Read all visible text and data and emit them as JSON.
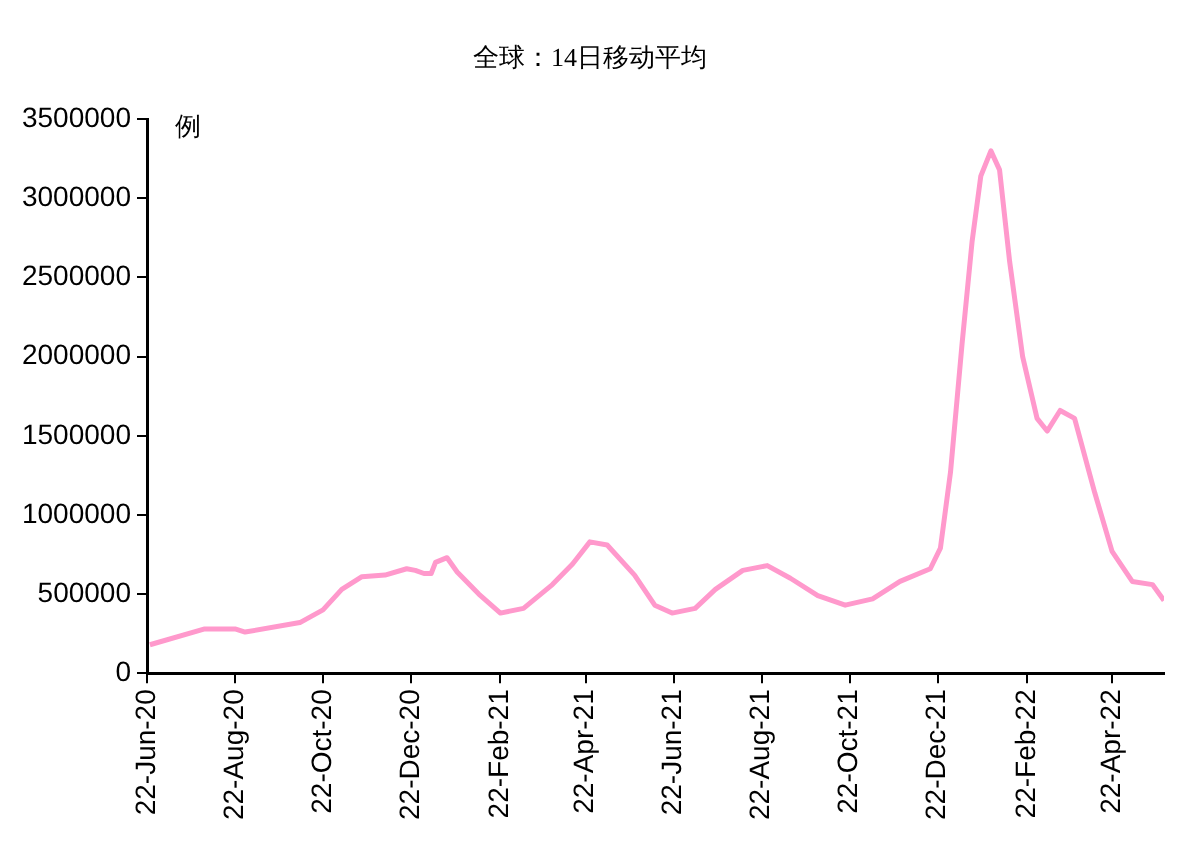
{
  "chart_data": {
    "type": "line",
    "title": "全球：14日移动平均",
    "ylabel": "例",
    "x": [
      "2020-06-24",
      "2020-08-01",
      "2020-08-22",
      "2020-08-29",
      "2020-10-06",
      "2020-10-22",
      "2020-11-04",
      "2020-11-18",
      "2020-12-04",
      "2020-12-19",
      "2020-12-25",
      "2020-12-31",
      "2021-01-05",
      "2021-01-08",
      "2021-01-16",
      "2021-01-23",
      "2021-02-07",
      "2021-02-22",
      "2021-03-10",
      "2021-03-30",
      "2021-04-13",
      "2021-04-25",
      "2021-05-07",
      "2021-05-26",
      "2021-06-09",
      "2021-06-21",
      "2021-07-07",
      "2021-07-21",
      "2021-08-09",
      "2021-08-26",
      "2021-09-11",
      "2021-09-30",
      "2021-10-19",
      "2021-11-07",
      "2021-11-26",
      "2021-12-17",
      "2021-12-24",
      "2021-12-31",
      "2022-01-08",
      "2022-01-15",
      "2022-01-21",
      "2022-01-28",
      "2022-02-03",
      "2022-02-10",
      "2022-02-19",
      "2022-03-01",
      "2022-03-08",
      "2022-03-17",
      "2022-03-27",
      "2022-04-10",
      "2022-04-22",
      "2022-05-06",
      "2022-05-20",
      "2022-05-28"
    ],
    "series": [
      {
        "color": "#ff99cc",
        "values": [
          180000,
          280000,
          280000,
          260000,
          320000,
          400000,
          530000,
          610000,
          620000,
          660000,
          650000,
          630000,
          630000,
          700000,
          730000,
          640000,
          500000,
          380000,
          410000,
          560000,
          690000,
          830000,
          810000,
          620000,
          430000,
          380000,
          410000,
          530000,
          650000,
          680000,
          600000,
          490000,
          430000,
          470000,
          580000,
          660000,
          790000,
          1270000,
          2080000,
          2730000,
          3140000,
          3300000,
          3180000,
          2600000,
          2000000,
          1610000,
          1530000,
          1660000,
          1610000,
          1140000,
          770000,
          580000,
          560000,
          460000
        ]
      }
    ],
    "xlim": [
      "2020-06-22",
      "2022-05-28"
    ],
    "xticks": [
      {
        "value": "2020-06-22",
        "label": "22-Jun-20"
      },
      {
        "value": "2020-08-22",
        "label": "22-Aug-20"
      },
      {
        "value": "2020-10-22",
        "label": "22-Oct-20"
      },
      {
        "value": "2020-12-22",
        "label": "22-Dec-20"
      },
      {
        "value": "2021-02-22",
        "label": "22-Feb-21"
      },
      {
        "value": "2021-04-22",
        "label": "22-Apr-21"
      },
      {
        "value": "2021-06-22",
        "label": "22-Jun-21"
      },
      {
        "value": "2021-08-22",
        "label": "22-Aug-21"
      },
      {
        "value": "2021-10-22",
        "label": "22-Oct-21"
      },
      {
        "value": "2021-12-22",
        "label": "22-Dec-21"
      },
      {
        "value": "2022-02-22",
        "label": "22-Feb-22"
      },
      {
        "value": "2022-04-22",
        "label": "22-Apr-22"
      }
    ],
    "ylim": [
      0,
      3500000
    ],
    "yticks": [
      0,
      500000,
      1000000,
      1500000,
      2000000,
      2500000,
      3000000,
      3500000
    ],
    "grid": false,
    "legend": false,
    "marker": "none",
    "line_style": "solid"
  }
}
